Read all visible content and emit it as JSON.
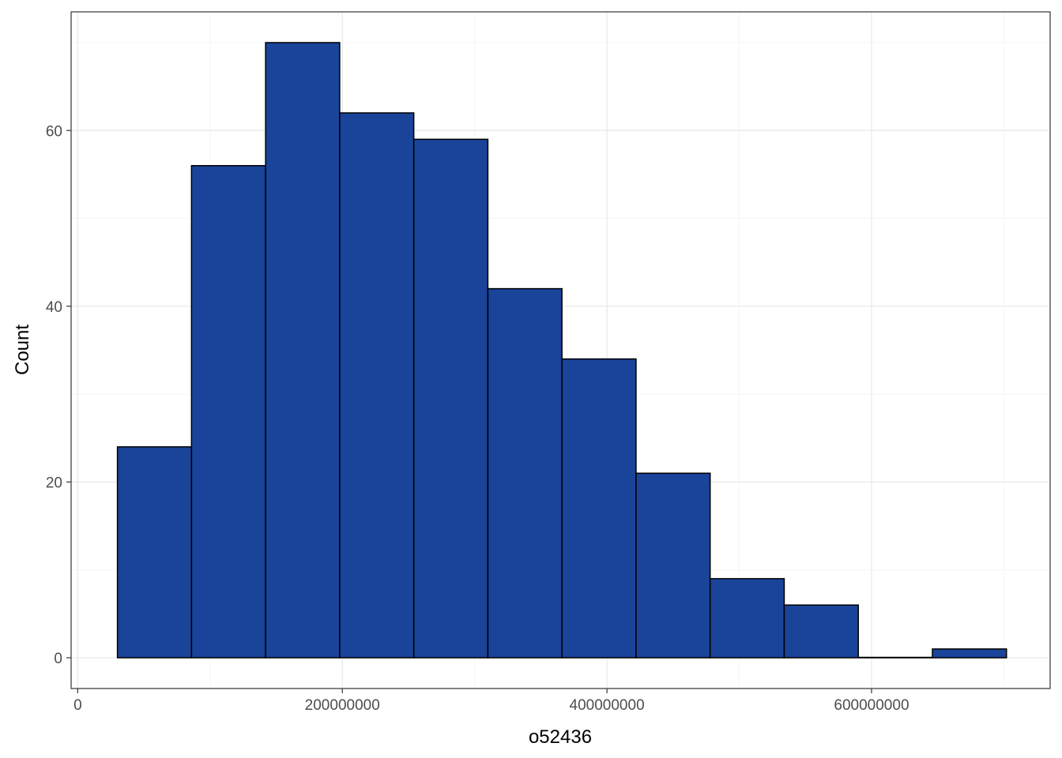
{
  "colors": {
    "bar_fill": "#194499",
    "bar_stroke": "#000000",
    "panel_border": "#333333",
    "grid_major": "#ebebeb",
    "grid_minor": "#f5f5f5",
    "tick_text": "#4d4d4d",
    "title_text": "#000000"
  },
  "chart_data": {
    "type": "bar",
    "subtype": "histogram",
    "xlabel": "o52436",
    "ylabel": "Count",
    "xlim": [
      -5000000,
      735000000
    ],
    "ylim": [
      -3.5,
      73.5
    ],
    "x_ticks": [
      0,
      200000000,
      400000000,
      600000000
    ],
    "x_tick_labels": [
      "0",
      "200000000",
      "400000000",
      "600000000"
    ],
    "y_ticks": [
      0,
      20,
      40,
      60
    ],
    "y_tick_labels": [
      "0",
      "20",
      "40",
      "60"
    ],
    "x_minor_ticks": [
      100000000,
      300000000,
      500000000,
      700000000
    ],
    "y_minor_ticks": [
      10,
      30,
      50,
      70
    ],
    "grid": true,
    "legend": "none",
    "bins": [
      {
        "x0": 30000000,
        "x1": 86000000,
        "count": 24
      },
      {
        "x0": 86000000,
        "x1": 142000000,
        "count": 56
      },
      {
        "x0": 142000000,
        "x1": 198000000,
        "count": 70
      },
      {
        "x0": 198000000,
        "x1": 254000000,
        "count": 62
      },
      {
        "x0": 254000000,
        "x1": 310000000,
        "count": 59
      },
      {
        "x0": 310000000,
        "x1": 366000000,
        "count": 42
      },
      {
        "x0": 366000000,
        "x1": 422000000,
        "count": 34
      },
      {
        "x0": 422000000,
        "x1": 478000000,
        "count": 21
      },
      {
        "x0": 478000000,
        "x1": 534000000,
        "count": 9
      },
      {
        "x0": 534000000,
        "x1": 590000000,
        "count": 6
      },
      {
        "x0": 590000000,
        "x1": 646000000,
        "count": 0
      },
      {
        "x0": 646000000,
        "x1": 702000000,
        "count": 1
      }
    ]
  }
}
